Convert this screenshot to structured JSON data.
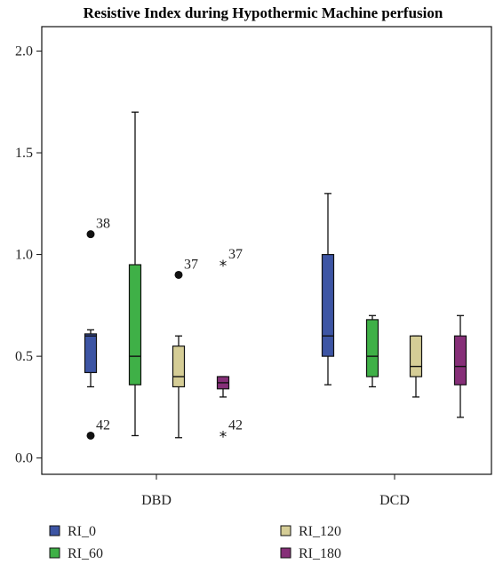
{
  "chart_data": {
    "type": "boxplot",
    "title": "Resistive Index during Hypothermic Machine perfusion",
    "categories": [
      "DBD",
      "DCD"
    ],
    "ylim": [
      -0.08,
      2.12
    ],
    "yticks": [
      "0.0",
      "0.5",
      "1.0",
      "1.5",
      "2.0"
    ],
    "legend_placement": "bottom",
    "series": [
      {
        "name": "RI_0",
        "color": "#3d55a4",
        "boxes": [
          {
            "whisker_low": 0.35,
            "q1": 0.42,
            "median": 0.6,
            "q3": 0.61,
            "whisker_high": 0.63,
            "outliers": [
              {
                "value": 1.1,
                "label": "38",
                "marker": "circle"
              },
              {
                "value": 0.11,
                "label": "42",
                "marker": "circle"
              }
            ]
          },
          {
            "whisker_low": 0.36,
            "q1": 0.5,
            "median": 0.6,
            "q3": 1.0,
            "whisker_high": 1.3,
            "outliers": []
          }
        ]
      },
      {
        "name": "RI_60",
        "color": "#3fb047",
        "boxes": [
          {
            "whisker_low": 0.11,
            "q1": 0.36,
            "median": 0.5,
            "q3": 0.95,
            "whisker_high": 1.7,
            "outliers": []
          },
          {
            "whisker_low": 0.35,
            "q1": 0.4,
            "median": 0.5,
            "q3": 0.68,
            "whisker_high": 0.7,
            "outliers": []
          }
        ]
      },
      {
        "name": "RI_120",
        "color": "#d5cd96",
        "boxes": [
          {
            "whisker_low": 0.1,
            "q1": 0.35,
            "median": 0.4,
            "q3": 0.55,
            "whisker_high": 0.6,
            "outliers": [
              {
                "value": 0.9,
                "label": "37",
                "marker": "circle"
              }
            ]
          },
          {
            "whisker_low": 0.3,
            "q1": 0.4,
            "median": 0.45,
            "q3": 0.6,
            "whisker_high": 0.6,
            "outliers": []
          }
        ]
      },
      {
        "name": "RI_180",
        "color": "#862f78",
        "boxes": [
          {
            "whisker_low": 0.3,
            "q1": 0.34,
            "median": 0.37,
            "q3": 0.4,
            "whisker_high": 0.4,
            "outliers": [
              {
                "value": 0.95,
                "label": "37",
                "marker": "star"
              },
              {
                "value": 0.11,
                "label": "42",
                "marker": "star"
              }
            ]
          },
          {
            "whisker_low": 0.2,
            "q1": 0.36,
            "median": 0.45,
            "q3": 0.6,
            "whisker_high": 0.7,
            "outliers": []
          }
        ]
      }
    ]
  }
}
